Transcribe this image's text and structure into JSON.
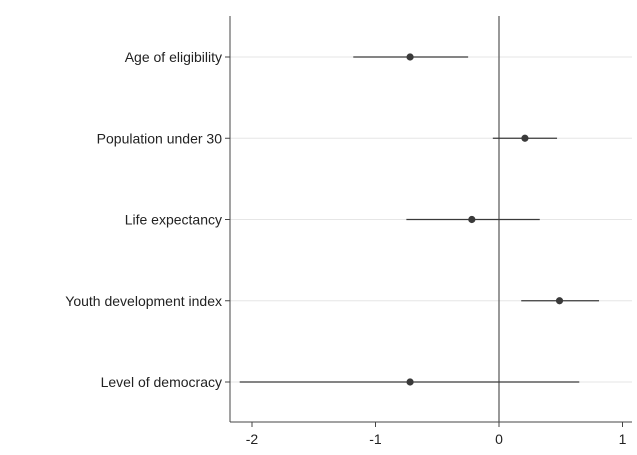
{
  "chart_data": {
    "type": "scatter",
    "subtype": "coefficient-plot",
    "title": "",
    "xlabel": "",
    "ylabel": "",
    "xlim": [
      -2.2,
      1.1
    ],
    "xticks": [
      -2,
      -1,
      0,
      1
    ],
    "xtick_labels": [
      "-2",
      "-1",
      "0",
      "1"
    ],
    "reference_line_x": 0,
    "grid": "horizontal",
    "legend": "none",
    "categories": [
      "Age of eligibility",
      "Population under 30",
      "Life expectancy",
      "Youth development index",
      "Level of democracy"
    ],
    "series": [
      {
        "estimate": [
          -0.72,
          0.21,
          -0.22,
          0.49,
          -0.72
        ],
        "ci_low": [
          -1.18,
          -0.05,
          -0.75,
          0.18,
          -2.1
        ],
        "ci_high": [
          -0.25,
          0.47,
          0.33,
          0.81,
          0.65
        ]
      }
    ],
    "colors": {
      "marker": "#3a3a3a",
      "ci_line": "#3a3a3a",
      "grid": "#e6e6e6",
      "axis": "#444444",
      "zero_line": "#555555"
    }
  }
}
